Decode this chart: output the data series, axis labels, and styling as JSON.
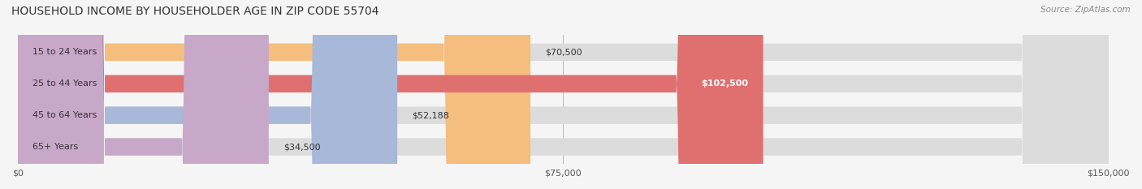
{
  "title": "HOUSEHOLD INCOME BY HOUSEHOLDER AGE IN ZIP CODE 55704",
  "source": "Source: ZipAtlas.com",
  "categories": [
    "15 to 24 Years",
    "25 to 44 Years",
    "45 to 64 Years",
    "65+ Years"
  ],
  "values": [
    70500,
    102500,
    52188,
    34500
  ],
  "bar_colors": [
    "#F5BE7E",
    "#E07070",
    "#A8B8D8",
    "#C8A8C8"
  ],
  "bar_bg_color": "#E8E8E8",
  "bar_edge_colors": [
    "#D4956A",
    "#C05050",
    "#8898B8",
    "#A888A8"
  ],
  "label_colors": [
    "#555555",
    "#FFFFFF",
    "#555555",
    "#555555"
  ],
  "value_labels": [
    "$70,500",
    "$102,500",
    "$52,188",
    "$34,500"
  ],
  "xlim": [
    0,
    150000
  ],
  "xticks": [
    0,
    75000,
    150000
  ],
  "xtick_labels": [
    "$0",
    "$75,000",
    "$150,000"
  ],
  "figsize": [
    14.06,
    2.33
  ],
  "dpi": 100,
  "title_fontsize": 10,
  "label_fontsize": 8,
  "tick_fontsize": 8,
  "source_fontsize": 7.5
}
